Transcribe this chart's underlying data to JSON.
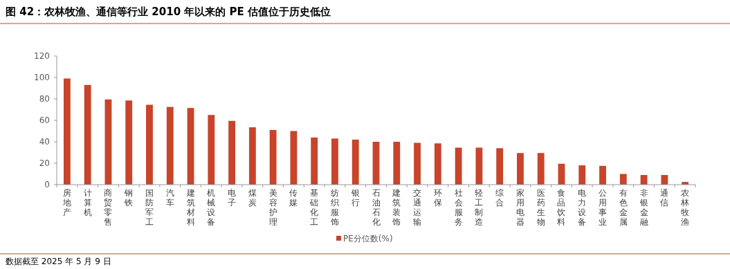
{
  "chart_data": {
    "type": "bar",
    "title": "图 42：农林牧渔、通信等行业 2010 年以来的 PE 估值位于历史低位",
    "categories": [
      "房地产",
      "计算机",
      "商贸零售",
      "钢铁",
      "国防军工",
      "汽车",
      "建筑材料",
      "机械设备",
      "电子",
      "煤炭",
      "美容护理",
      "传媒",
      "基础化工",
      "纺织服饰",
      "银行",
      "石油石化",
      "建筑装饰",
      "交通运输",
      "环保",
      "社会服务",
      "轻工制造",
      "综合",
      "家用电器",
      "医药生物",
      "食品饮料",
      "电力设备",
      "公用事业",
      "有色金属",
      "非银金融",
      "通信",
      "农林牧渔"
    ],
    "series": [
      {
        "name": "PE分位数(%)",
        "color": "#c8442a",
        "values": [
          99,
          93,
          79.5,
          78.5,
          74.5,
          72.5,
          71.5,
          65,
          59.5,
          53.5,
          51,
          50,
          44,
          43,
          42,
          40,
          40,
          39,
          38.5,
          34.5,
          34.5,
          34,
          29.5,
          29.5,
          19.5,
          18,
          17.5,
          10,
          9,
          9,
          2.5
        ]
      }
    ],
    "ylim": [
      0,
      120
    ],
    "yticks": [
      0,
      20,
      40,
      60,
      80,
      100,
      120
    ],
    "grid": false,
    "legend": "bottom",
    "annotations": [
      "数据截至 2025 年 5 月 9 日"
    ]
  }
}
